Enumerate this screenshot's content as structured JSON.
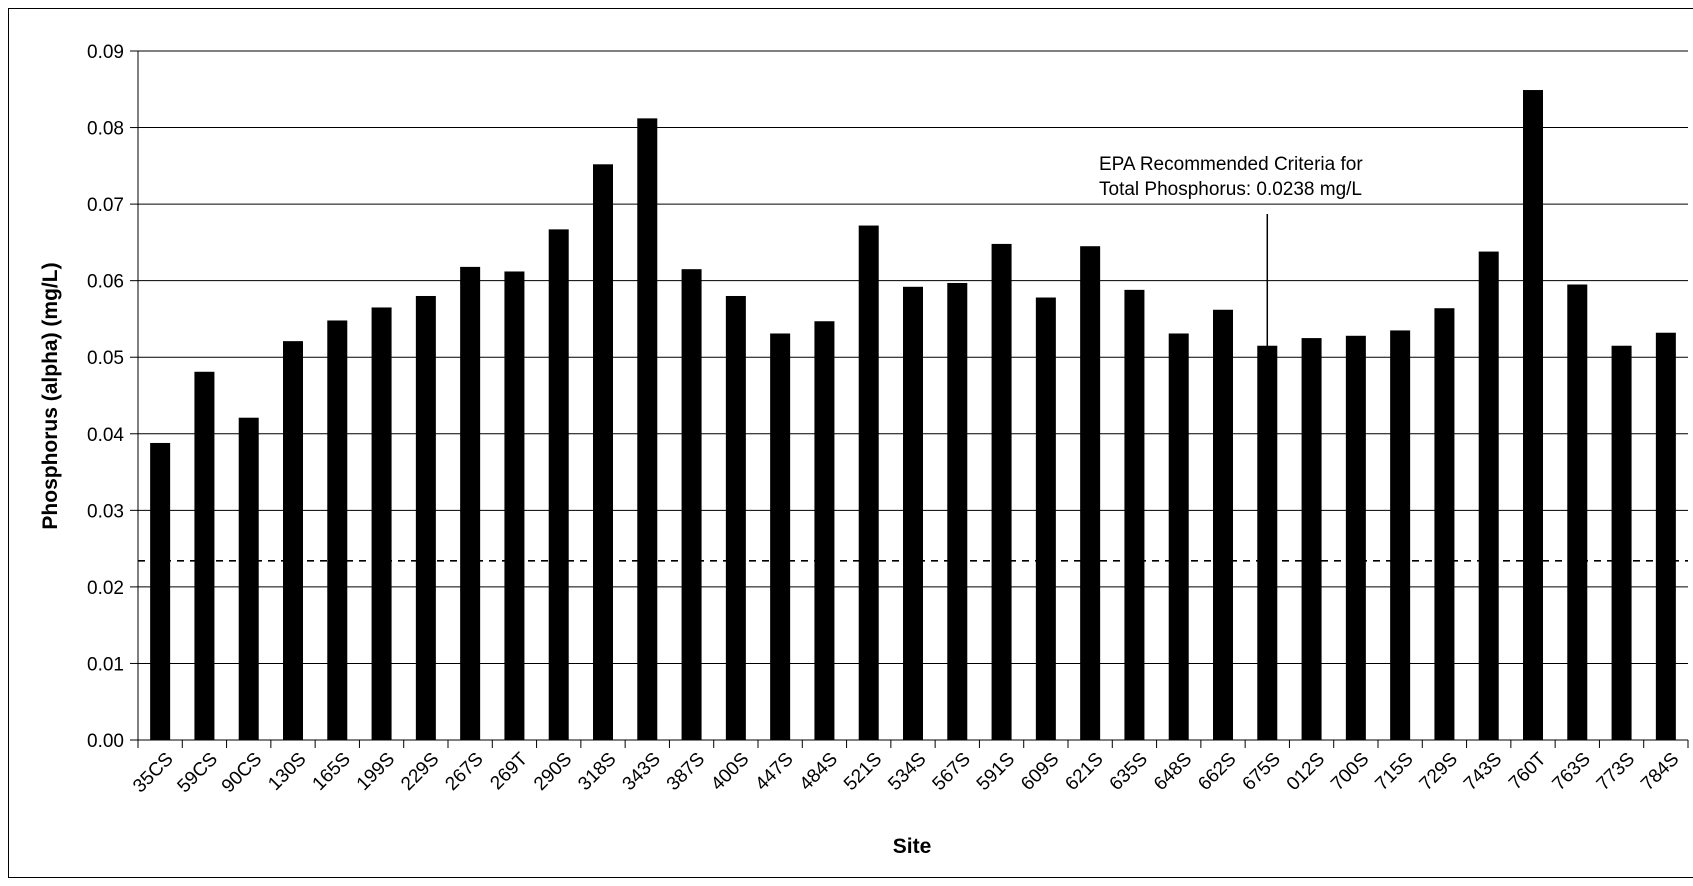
{
  "chart_data": {
    "type": "bar",
    "title": "",
    "xlabel": "Site",
    "ylabel": "Phosphorus (alpha) (mg/L)",
    "ylim": [
      0,
      0.09
    ],
    "yticks": [
      "0.00",
      "0.01",
      "0.02",
      "0.03",
      "0.04",
      "0.05",
      "0.06",
      "0.07",
      "0.08",
      "0.09"
    ],
    "grid": true,
    "legend": "none",
    "bar_color": "#000000",
    "categories": [
      "35CS",
      "59CS",
      "90CS",
      "130S",
      "165S",
      "199S",
      "229S",
      "267S",
      "269T",
      "290S",
      "318S",
      "343S",
      "387S",
      "400S",
      "447S",
      "484S",
      "521S",
      "534S",
      "567S",
      "591S",
      "609S",
      "621S",
      "635S",
      "648S",
      "662S",
      "675S",
      "012S",
      "700S",
      "715S",
      "729S",
      "743S",
      "760T",
      "763S",
      "773S",
      "784S"
    ],
    "values": [
      0.0388,
      0.0481,
      0.0421,
      0.0521,
      0.0548,
      0.0565,
      0.058,
      0.0618,
      0.0612,
      0.0667,
      0.0752,
      0.0812,
      0.0615,
      0.058,
      0.0531,
      0.0547,
      0.0672,
      0.0592,
      0.0597,
      0.0648,
      0.0578,
      0.0645,
      0.0588,
      0.0531,
      0.0562,
      0.0515,
      0.0525,
      0.0528,
      0.0535,
      0.0564,
      0.0638,
      0.0849,
      0.0595,
      0.0515,
      0.0532
    ],
    "reference_line": {
      "value": 0.0238,
      "style": "dashed"
    },
    "annotation": {
      "lines": [
        "EPA Recommended Criteria for",
        "Total Phosphorus: 0.0238 mg/L"
      ],
      "arrow_category": "675S"
    }
  }
}
